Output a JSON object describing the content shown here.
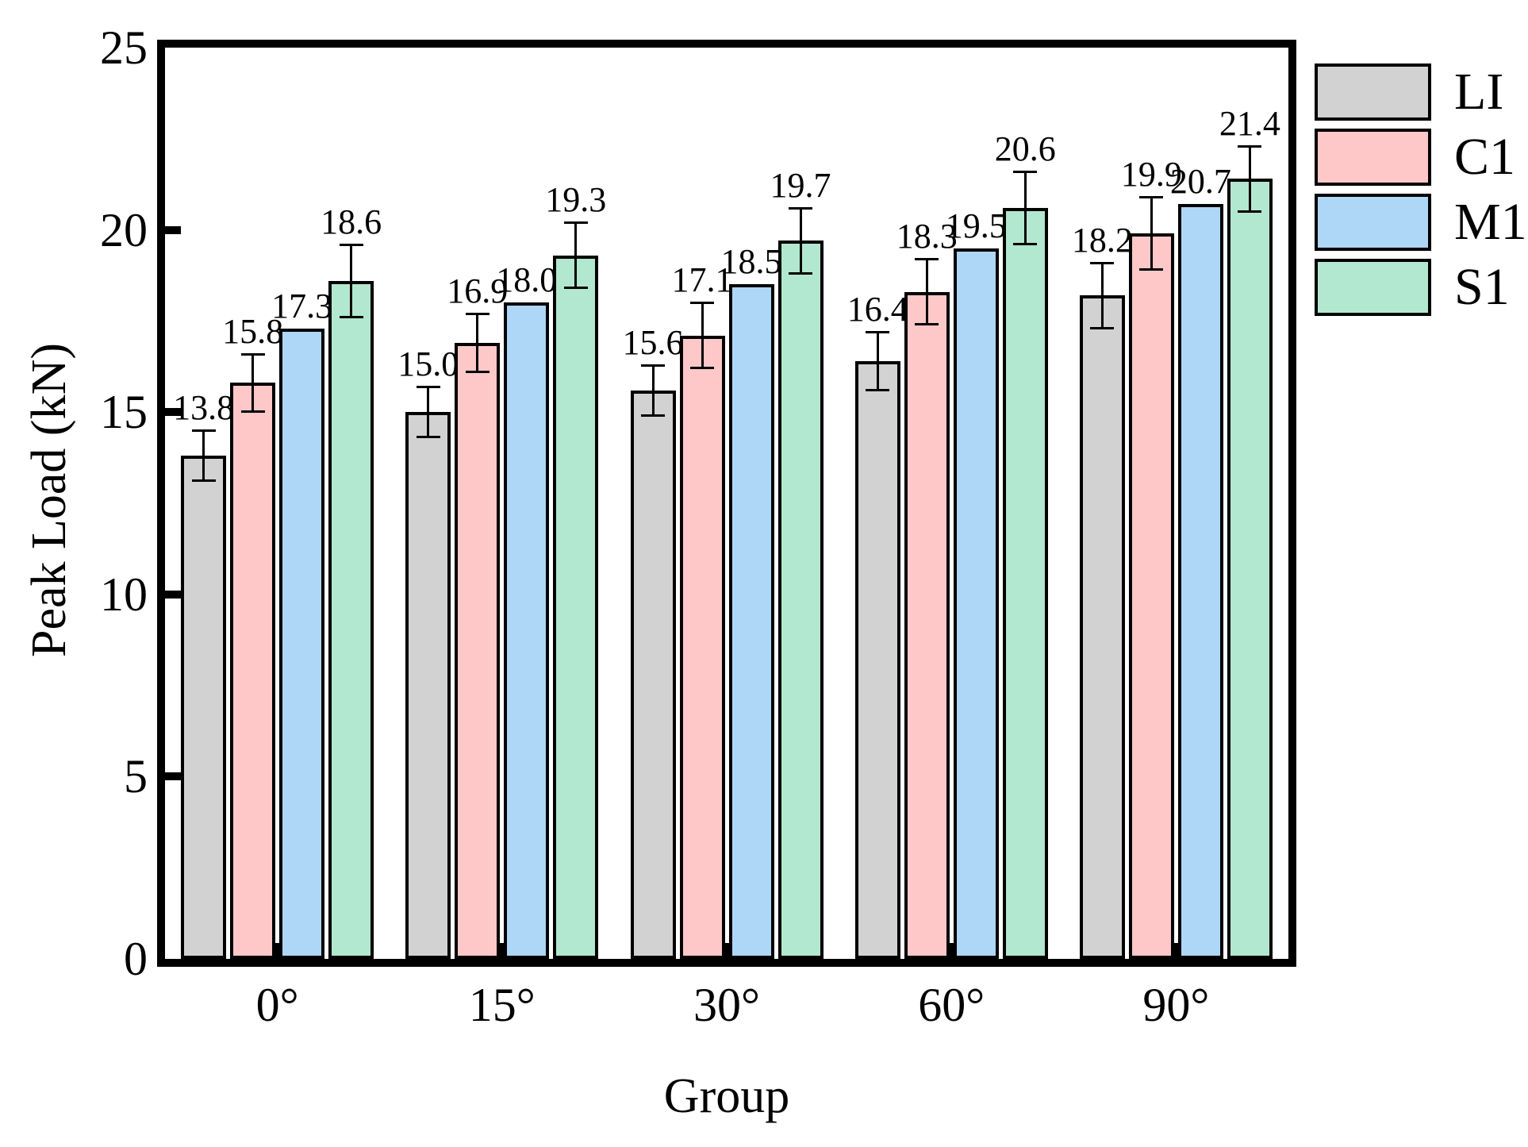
{
  "figure": {
    "background": "#ffffff",
    "frame_color": "#000000"
  },
  "chart_data": {
    "type": "bar",
    "title": "",
    "xlabel": "Group",
    "ylabel": "Peak Load (kN)",
    "categories": [
      "0°",
      "15°",
      "30°",
      "60°",
      "90°"
    ],
    "series": [
      {
        "name": "LI",
        "color": "#d2d2d2",
        "values": [
          13.8,
          15.0,
          15.6,
          16.4,
          18.2
        ],
        "errors": [
          0.7,
          0.7,
          0.7,
          0.8,
          0.9
        ]
      },
      {
        "name": "C1",
        "color": "#ffc8c8",
        "values": [
          15.8,
          16.9,
          17.1,
          18.3,
          19.9
        ],
        "errors": [
          0.8,
          0.8,
          0.9,
          0.9,
          1.0
        ]
      },
      {
        "name": "M1",
        "color": "#aed6f7",
        "values": [
          17.3,
          18.0,
          18.5,
          19.5,
          20.7
        ],
        "errors": [
          0,
          0,
          0,
          0,
          0
        ]
      },
      {
        "name": "S1",
        "color": "#b2e8cf",
        "values": [
          18.6,
          19.3,
          19.7,
          20.6,
          21.4
        ],
        "errors": [
          1.0,
          0.9,
          0.9,
          1.0,
          0.9
        ]
      }
    ],
    "ylim": [
      0,
      25
    ],
    "yticks": [
      0,
      5,
      10,
      15,
      20,
      25
    ],
    "bar_labels": true,
    "value_decimals": 1,
    "grid": false,
    "legend_position": "outside-top-right",
    "error_bar_color": "#000000"
  }
}
